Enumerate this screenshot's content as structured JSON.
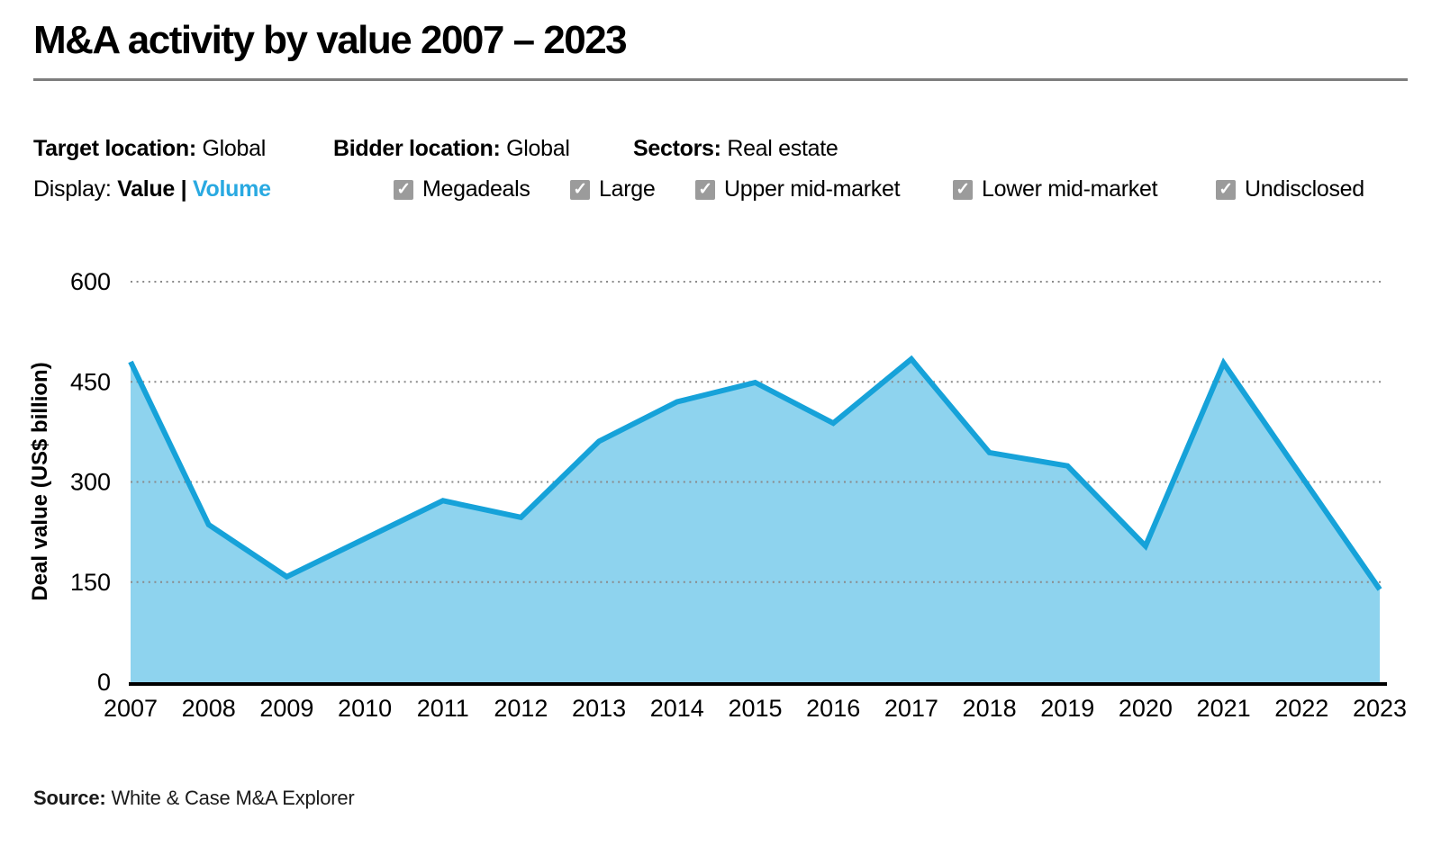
{
  "title": "M&A activity by value 2007 – 2023",
  "filters": {
    "target_location": {
      "label": "Target location",
      "value": "Global"
    },
    "bidder_location": {
      "label": "Bidder location",
      "value": "Global"
    },
    "sectors": {
      "label": "Sectors",
      "value": "Real estate"
    },
    "display": {
      "label": "Display:",
      "value_option": "Value",
      "separator": "|",
      "volume_option": "Volume"
    },
    "checkboxes": [
      {
        "label": "Megadeals",
        "checked": true,
        "mark": "✓"
      },
      {
        "label": "Large",
        "checked": true,
        "mark": "✓"
      },
      {
        "label": "Upper mid-market",
        "checked": true,
        "mark": "✓"
      },
      {
        "label": "Lower mid-market",
        "checked": true,
        "mark": "✓"
      },
      {
        "label": "Undisclosed",
        "checked": true,
        "mark": "✓"
      }
    ]
  },
  "colors": {
    "line": "#16a2d9",
    "fill": "#8ed3ee",
    "volume_link": "#29a9e1",
    "checkbox": "#9b9b9b",
    "gridline": "#8a8a8a",
    "axis": "#000000",
    "tick_text": "#000000"
  },
  "chart_data": {
    "type": "area",
    "x": [
      2007,
      2008,
      2009,
      2010,
      2011,
      2012,
      2013,
      2014,
      2015,
      2016,
      2017,
      2018,
      2019,
      2020,
      2021,
      2022,
      2023
    ],
    "values": [
      480,
      236,
      158,
      215,
      272,
      247,
      361,
      420,
      449,
      388,
      484,
      344,
      324,
      204,
      478,
      308,
      139
    ],
    "series_name": "Deal value",
    "title": "M&A activity by value 2007 – 2023",
    "xlabel": "",
    "ylabel": "Deal value (US$ billion)",
    "ylim": [
      0,
      600
    ],
    "yticks": [
      0,
      150,
      300,
      450,
      600
    ],
    "grid": "horizontal-dotted",
    "legend": "none"
  },
  "source": {
    "label": "Source:",
    "text": "White & Case M&A Explorer"
  }
}
